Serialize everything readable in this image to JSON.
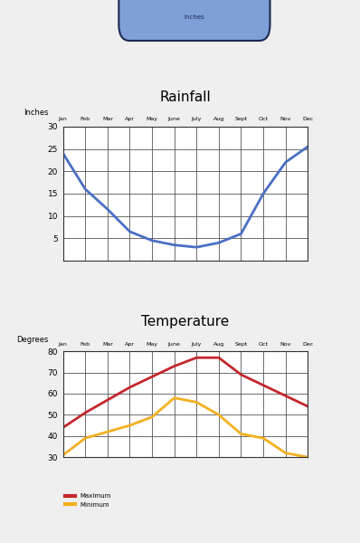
{
  "header_label": "Inches",
  "chart_data": [
    {
      "type": "line",
      "title": "Rainfall",
      "y_label": "Inches",
      "categories": [
        "Jan",
        "Feb",
        "Mar",
        "Apr",
        "May",
        "June",
        "July",
        "Aug",
        "Sept",
        "Oct",
        "Nov",
        "Dec"
      ],
      "values": [
        24,
        16,
        11.5,
        6.5,
        4.5,
        3.5,
        3,
        4,
        6,
        15,
        22,
        25.5
      ],
      "color": "#4a6fc4",
      "ylim": [
        0,
        30
      ],
      "yticks": [
        5,
        10,
        15,
        20,
        25,
        30
      ],
      "grid": true
    },
    {
      "type": "line",
      "title": "Temperature",
      "y_label": "Degrees",
      "categories": [
        "Jan",
        "Feb",
        "Mar",
        "Apr",
        "May",
        "June",
        "July",
        "Aug",
        "Sept",
        "Oct",
        "Nov",
        "Dec"
      ],
      "series": [
        {
          "name": "Maximum",
          "color": "#c4262c",
          "values": [
            44,
            51,
            57,
            63,
            68,
            73,
            77,
            77,
            69,
            64,
            59,
            54
          ]
        },
        {
          "name": "Minimum",
          "color": "#f2b01e",
          "values": [
            31,
            39,
            42,
            45,
            49,
            58,
            56,
            50,
            41,
            39,
            32,
            30
          ]
        }
      ],
      "ylim": [
        30,
        80
      ],
      "yticks": [
        30,
        40,
        50,
        60,
        70,
        80
      ],
      "grid": true,
      "legend": "lower left"
    }
  ]
}
